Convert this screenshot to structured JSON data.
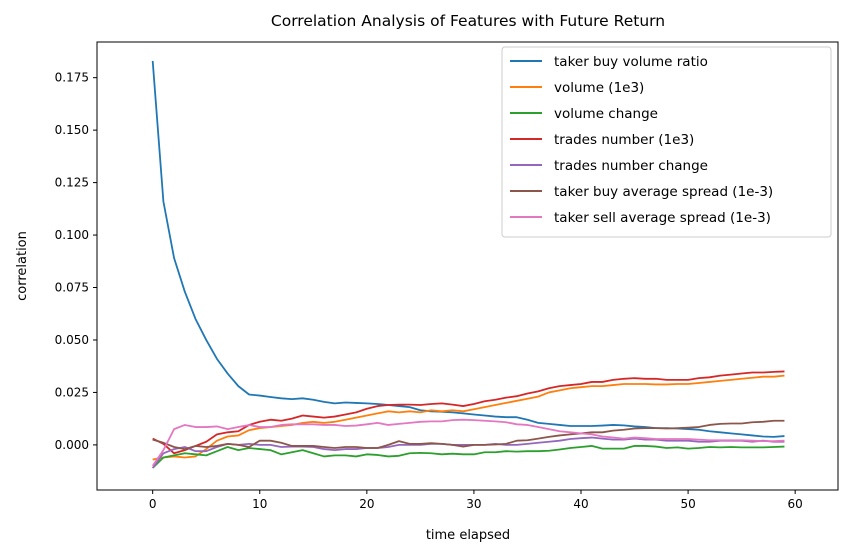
{
  "chart_data": {
    "type": "line",
    "title": "Correlation Analysis of Features with Future Return",
    "xlabel": "time elapsed",
    "ylabel": "correlation",
    "xlim": [
      -5.2,
      64
    ],
    "ylim": [
      -0.0215,
      0.192
    ],
    "xticks": [
      0,
      10,
      20,
      30,
      40,
      50,
      60
    ],
    "yticks": [
      0.0,
      0.025,
      0.05,
      0.075,
      0.1,
      0.125,
      0.15,
      0.175
    ],
    "ytick_labels": [
      "0.000",
      "0.025",
      "0.050",
      "0.075",
      "0.100",
      "0.125",
      "0.150",
      "0.175"
    ],
    "grid": false,
    "legend_position": "top-right",
    "series": [
      {
        "name": "taker buy volume ratio",
        "color": "#1f77b4",
        "x": [
          0,
          1,
          2,
          3,
          4,
          5,
          6,
          7,
          8,
          9,
          10,
          11,
          12,
          13,
          14,
          15,
          16,
          17,
          18,
          19,
          20,
          21,
          22,
          23,
          24,
          25,
          26,
          27,
          28,
          29,
          30,
          31,
          32,
          33,
          34,
          35,
          36,
          37,
          38,
          39,
          40,
          41,
          42,
          43,
          44,
          45,
          46,
          47,
          48,
          49,
          50,
          51,
          52,
          53,
          54,
          55,
          56,
          57,
          58,
          59
        ],
        "values": [
          0.183,
          0.116,
          0.089,
          0.073,
          0.06,
          0.05,
          0.041,
          0.034,
          0.028,
          0.024,
          0.0235,
          0.0228,
          0.0222,
          0.0218,
          0.0222,
          0.0215,
          0.0205,
          0.0198,
          0.0202,
          0.02,
          0.0198,
          0.0195,
          0.019,
          0.0185,
          0.018,
          0.0165,
          0.016,
          0.0158,
          0.0155,
          0.015,
          0.0145,
          0.014,
          0.0135,
          0.0132,
          0.0132,
          0.012,
          0.0105,
          0.01,
          0.0095,
          0.009,
          0.009,
          0.009,
          0.0092,
          0.0095,
          0.0093,
          0.0088,
          0.0085,
          0.008,
          0.008,
          0.0078,
          0.0075,
          0.0072,
          0.0065,
          0.006,
          0.0055,
          0.005,
          0.0045,
          0.004,
          0.0038,
          0.0042
        ]
      },
      {
        "name": "volume (1e3)",
        "color": "#ff7f0e",
        "x": [
          0,
          1,
          2,
          3,
          4,
          5,
          6,
          7,
          8,
          9,
          10,
          11,
          12,
          13,
          14,
          15,
          16,
          17,
          18,
          19,
          20,
          21,
          22,
          23,
          24,
          25,
          26,
          27,
          28,
          29,
          30,
          31,
          32,
          33,
          34,
          35,
          36,
          37,
          38,
          39,
          40,
          41,
          42,
          43,
          44,
          45,
          46,
          47,
          48,
          49,
          50,
          51,
          52,
          53,
          54,
          55,
          56,
          57,
          58,
          59
        ],
        "values": [
          -0.007,
          -0.006,
          -0.0055,
          -0.006,
          -0.0055,
          -0.002,
          0.002,
          0.004,
          0.0045,
          0.007,
          0.008,
          0.0085,
          0.009,
          0.0095,
          0.0105,
          0.011,
          0.0105,
          0.011,
          0.012,
          0.013,
          0.014,
          0.015,
          0.016,
          0.0155,
          0.016,
          0.0155,
          0.0165,
          0.016,
          0.0165,
          0.016,
          0.017,
          0.018,
          0.019,
          0.02,
          0.021,
          0.022,
          0.023,
          0.025,
          0.026,
          0.027,
          0.0275,
          0.028,
          0.028,
          0.0285,
          0.029,
          0.029,
          0.029,
          0.0288,
          0.0288,
          0.029,
          0.029,
          0.0295,
          0.03,
          0.0305,
          0.031,
          0.0315,
          0.032,
          0.0325,
          0.0325,
          0.033
        ]
      },
      {
        "name": "volume change",
        "color": "#2ca02c",
        "x": [
          0,
          1,
          2,
          3,
          4,
          5,
          6,
          7,
          8,
          9,
          10,
          11,
          12,
          13,
          14,
          15,
          16,
          17,
          18,
          19,
          20,
          21,
          22,
          23,
          24,
          25,
          26,
          27,
          28,
          29,
          30,
          31,
          32,
          33,
          34,
          35,
          36,
          37,
          38,
          39,
          40,
          41,
          42,
          43,
          44,
          45,
          46,
          47,
          48,
          49,
          50,
          51,
          52,
          53,
          54,
          55,
          56,
          57,
          58,
          59
        ],
        "values": [
          -0.011,
          -0.006,
          -0.005,
          -0.004,
          -0.0045,
          -0.005,
          -0.003,
          -0.001,
          -0.0025,
          -0.0015,
          -0.002,
          -0.0025,
          -0.0045,
          -0.0035,
          -0.0025,
          -0.004,
          -0.0055,
          -0.005,
          -0.005,
          -0.0055,
          -0.0045,
          -0.0048,
          -0.0055,
          -0.0052,
          -0.004,
          -0.0038,
          -0.004,
          -0.0045,
          -0.0042,
          -0.0045,
          -0.0045,
          -0.0035,
          -0.0035,
          -0.003,
          -0.0032,
          -0.003,
          -0.003,
          -0.0028,
          -0.0022,
          -0.0015,
          -0.001,
          -0.0005,
          -0.0018,
          -0.0018,
          -0.0018,
          -0.0005,
          -0.0005,
          -0.0008,
          -0.0015,
          -0.0012,
          -0.0018,
          -0.0015,
          -0.001,
          -0.0012,
          -0.001,
          -0.0012,
          -0.0012,
          -0.0012,
          -0.001,
          -0.0008
        ]
      },
      {
        "name": "trades number (1e3)",
        "color": "#d62728",
        "x": [
          0,
          1,
          2,
          3,
          4,
          5,
          6,
          7,
          8,
          9,
          10,
          11,
          12,
          13,
          14,
          15,
          16,
          17,
          18,
          19,
          20,
          21,
          22,
          23,
          24,
          25,
          26,
          27,
          28,
          29,
          30,
          31,
          32,
          33,
          34,
          35,
          36,
          37,
          38,
          39,
          40,
          41,
          42,
          43,
          44,
          45,
          46,
          47,
          48,
          49,
          50,
          51,
          52,
          53,
          54,
          55,
          56,
          57,
          58,
          59
        ],
        "values": [
          0.003,
          0.0005,
          -0.004,
          -0.0025,
          -0.0005,
          0.0015,
          0.005,
          0.006,
          0.0065,
          0.0095,
          0.011,
          0.012,
          0.0115,
          0.0125,
          0.014,
          0.0135,
          0.013,
          0.0135,
          0.0145,
          0.0155,
          0.0172,
          0.0185,
          0.019,
          0.0192,
          0.0192,
          0.019,
          0.0195,
          0.0198,
          0.0192,
          0.0185,
          0.0195,
          0.0208,
          0.0215,
          0.0225,
          0.0232,
          0.0245,
          0.0255,
          0.027,
          0.028,
          0.0285,
          0.029,
          0.03,
          0.03,
          0.031,
          0.0315,
          0.0318,
          0.0315,
          0.0315,
          0.031,
          0.031,
          0.031,
          0.0318,
          0.0322,
          0.033,
          0.0335,
          0.034,
          0.0345,
          0.0345,
          0.0348,
          0.035
        ]
      },
      {
        "name": "trades number change",
        "color": "#9467bd",
        "x": [
          0,
          1,
          2,
          3,
          4,
          5,
          6,
          7,
          8,
          9,
          10,
          11,
          12,
          13,
          14,
          15,
          16,
          17,
          18,
          19,
          20,
          21,
          22,
          23,
          24,
          25,
          26,
          27,
          28,
          29,
          30,
          31,
          32,
          33,
          34,
          35,
          36,
          37,
          38,
          39,
          40,
          41,
          42,
          43,
          44,
          45,
          46,
          47,
          48,
          49,
          50,
          51,
          52,
          53,
          54,
          55,
          56,
          57,
          58,
          59
        ],
        "values": [
          -0.011,
          -0.004,
          -0.002,
          -0.001,
          -0.003,
          -0.003,
          -0.001,
          0.0005,
          0.0,
          0.0005,
          0.0,
          0.0,
          -0.001,
          -0.0008,
          -0.0008,
          -0.001,
          -0.002,
          -0.0025,
          -0.002,
          -0.002,
          -0.0015,
          -0.0015,
          -0.001,
          0.0,
          0.0,
          0.0,
          0.0005,
          0.0005,
          0.0,
          0.0,
          0.0,
          0.0,
          0.0005,
          0.0,
          0.0,
          0.0005,
          0.001,
          0.0015,
          0.002,
          0.0028,
          0.0032,
          0.0035,
          0.003,
          0.0025,
          0.0025,
          0.003,
          0.0025,
          0.0025,
          0.002,
          0.002,
          0.002,
          0.0015,
          0.0015,
          0.002,
          0.002,
          0.002,
          0.0015,
          0.002,
          0.0015,
          0.0015
        ]
      },
      {
        "name": "taker buy average spread (1e-3)",
        "color": "#8c564b",
        "x": [
          0,
          1,
          2,
          3,
          4,
          5,
          6,
          7,
          8,
          9,
          10,
          11,
          12,
          13,
          14,
          15,
          16,
          17,
          18,
          19,
          20,
          21,
          22,
          23,
          24,
          25,
          26,
          27,
          28,
          29,
          30,
          31,
          32,
          33,
          34,
          35,
          36,
          37,
          38,
          39,
          40,
          41,
          42,
          43,
          44,
          45,
          46,
          47,
          48,
          49,
          50,
          51,
          52,
          53,
          54,
          55,
          56,
          57,
          58,
          59
        ],
        "values": [
          0.0025,
          0.001,
          -0.001,
          -0.002,
          -0.0005,
          -0.001,
          -0.0005,
          0.0005,
          0.0,
          -0.001,
          0.002,
          0.002,
          0.001,
          -0.0005,
          -0.0005,
          -0.0005,
          -0.001,
          -0.0015,
          -0.001,
          -0.001,
          -0.0015,
          -0.0015,
          0.0,
          0.0018,
          0.0005,
          0.0005,
          0.0008,
          0.0005,
          0.0,
          -0.0008,
          0.0,
          0.0,
          0.0002,
          0.0005,
          0.002,
          0.0022,
          0.003,
          0.0038,
          0.0045,
          0.005,
          0.0055,
          0.006,
          0.006,
          0.0068,
          0.0072,
          0.0078,
          0.008,
          0.008,
          0.0078,
          0.008,
          0.0082,
          0.0085,
          0.0095,
          0.01,
          0.0102,
          0.0102,
          0.0108,
          0.011,
          0.0115,
          0.0115
        ]
      },
      {
        "name": "taker sell average spread (1e-3)",
        "color": "#e377c2",
        "x": [
          0,
          1,
          2,
          3,
          4,
          5,
          6,
          7,
          8,
          9,
          10,
          11,
          12,
          13,
          14,
          15,
          16,
          17,
          18,
          19,
          20,
          21,
          22,
          23,
          24,
          25,
          26,
          27,
          28,
          29,
          30,
          31,
          32,
          33,
          34,
          35,
          36,
          37,
          38,
          39,
          40,
          41,
          42,
          43,
          44,
          45,
          46,
          47,
          48,
          49,
          50,
          51,
          52,
          53,
          54,
          55,
          56,
          57,
          58,
          59
        ],
        "values": [
          -0.01,
          -0.0025,
          0.0075,
          0.0095,
          0.0085,
          0.0085,
          0.0088,
          0.0075,
          0.0085,
          0.0095,
          0.0085,
          0.0085,
          0.0095,
          0.0098,
          0.0098,
          0.0098,
          0.0095,
          0.0095,
          0.009,
          0.0092,
          0.0098,
          0.0105,
          0.0095,
          0.01,
          0.0105,
          0.011,
          0.0112,
          0.0112,
          0.0118,
          0.012,
          0.0118,
          0.0115,
          0.0112,
          0.0108,
          0.0098,
          0.0095,
          0.0085,
          0.0075,
          0.0065,
          0.006,
          0.0055,
          0.005,
          0.004,
          0.0035,
          0.003,
          0.0035,
          0.0032,
          0.0028,
          0.0028,
          0.0028,
          0.0028,
          0.0025,
          0.0022,
          0.0022,
          0.0022,
          0.0022,
          0.002,
          0.0018,
          0.0018,
          0.002
        ]
      }
    ]
  }
}
